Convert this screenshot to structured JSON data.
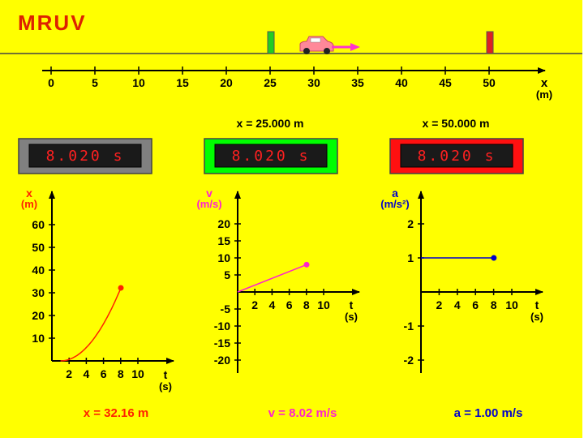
{
  "title": "MRUV",
  "colors": {
    "background": "#ffff00",
    "title": "#dd2200",
    "start_marker": "#22cc22",
    "end_marker": "#dd2222",
    "car": "#ff8899",
    "arrow": "#ff33cc",
    "x_color": "#ff2200",
    "v_color": "#ff22cc",
    "a_color": "#0000cc"
  },
  "track": {
    "axis_label": "x",
    "unit": "(m)",
    "ticks": [
      "0",
      "5",
      "10",
      "15",
      "20",
      "25",
      "30",
      "35",
      "40",
      "45",
      "50"
    ],
    "start_marker_x": 25,
    "end_marker_x": 50,
    "car_x": 30,
    "start_label": "x = 25.000 m",
    "end_label": "x = 50.000 m"
  },
  "timers": [
    {
      "value": "8.020  s",
      "frame_color": "#808080"
    },
    {
      "value": "8.020  s",
      "frame_color": "#00ff00"
    },
    {
      "value": "8.020  s",
      "frame_color": "#ff1010"
    }
  ],
  "graphs": {
    "x": {
      "axis_var": "x",
      "axis_unit": "(m)",
      "t_label": "t",
      "t_unit": "(s)",
      "y_ticks": [
        "60",
        "50",
        "40",
        "30",
        "20",
        "10"
      ],
      "t_ticks": [
        "2",
        "4",
        "6",
        "8",
        "10"
      ],
      "readout": "x = 32.16 m"
    },
    "v": {
      "axis_var": "v",
      "axis_unit": "(m/s)",
      "t_label": "t",
      "t_unit": "(s)",
      "y_ticks": [
        "20",
        "15",
        "10",
        "5",
        "-5",
        "-10",
        "-15",
        "-20"
      ],
      "t_ticks": [
        "2",
        "4",
        "6",
        "8",
        "10"
      ],
      "readout": "v = 8.02 m/s"
    },
    "a": {
      "axis_var": "a",
      "axis_unit": "(m/s²)",
      "t_label": "t",
      "t_unit": "(s)",
      "y_ticks": [
        "2",
        "1",
        "-1",
        "-2"
      ],
      "t_ticks": [
        "2",
        "4",
        "6",
        "8",
        "10"
      ],
      "readout": "a = 1.00 m/s"
    }
  },
  "chart_data": [
    {
      "type": "line",
      "xlabel": "t (s)",
      "ylabel": "x (m)",
      "xlim": [
        0,
        10
      ],
      "ylim": [
        0,
        60
      ],
      "x": [
        1,
        2,
        3,
        4,
        5,
        6,
        7,
        8.02
      ],
      "y": [
        0,
        0.5,
        2,
        4.5,
        8,
        12.5,
        18,
        32.16
      ]
    },
    {
      "type": "line",
      "xlabel": "t (s)",
      "ylabel": "v (m/s)",
      "xlim": [
        0,
        10
      ],
      "ylim": [
        -20,
        20
      ],
      "x": [
        0,
        8.02
      ],
      "y": [
        0,
        8.02
      ]
    },
    {
      "type": "line",
      "xlabel": "t (s)",
      "ylabel": "a (m/s²)",
      "xlim": [
        0,
        10
      ],
      "ylim": [
        -2,
        2
      ],
      "x": [
        0,
        8.02
      ],
      "y": [
        1,
        1
      ]
    }
  ]
}
